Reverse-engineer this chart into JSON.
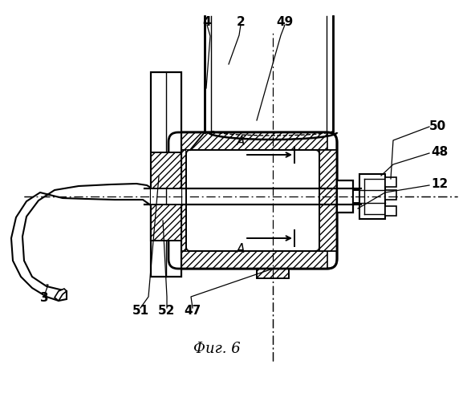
{
  "title": "Фиг. 6",
  "background_color": "#ffffff",
  "line_color": "#000000",
  "labels": [
    "2",
    "4",
    "49",
    "50",
    "48",
    "12",
    "3",
    "51",
    "52",
    "47"
  ],
  "fig_w": 5.92,
  "fig_h": 5.0,
  "dpi": 100
}
